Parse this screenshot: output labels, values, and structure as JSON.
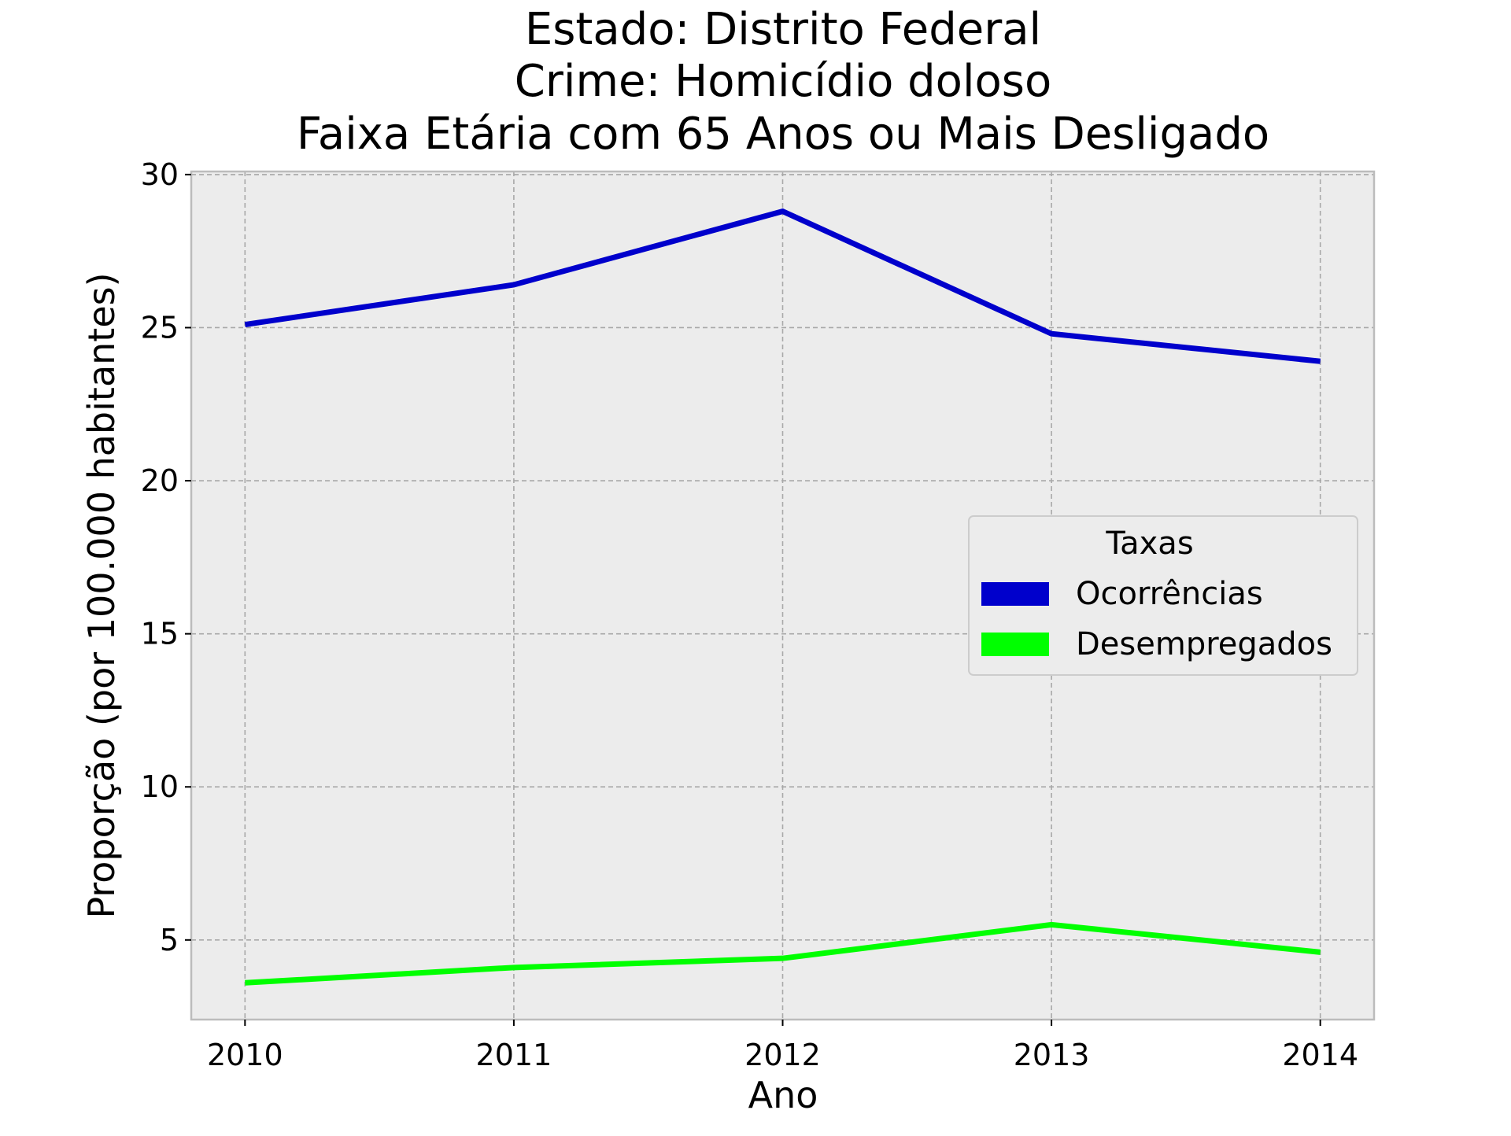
{
  "chart_data": {
    "type": "line",
    "title_lines": [
      "Estado: Distrito Federal",
      "Crime: Homicídio doloso",
      "Faixa Etária com 65 Anos ou Mais   Desligado"
    ],
    "xlabel": "Ano",
    "ylabel": "Proporção (por 100.000 habitantes)",
    "x": [
      2010,
      2011,
      2012,
      2013,
      2014
    ],
    "x_tick_labels": [
      "2010",
      "2011",
      "2012",
      "2013",
      "2014"
    ],
    "y_ticks": [
      5,
      10,
      15,
      20,
      25,
      30
    ],
    "y_tick_labels": [
      "5",
      "10",
      "15",
      "20",
      "25",
      "30"
    ],
    "xlim": [
      2009.8,
      2014.2
    ],
    "ylim": [
      2.4,
      30.1
    ],
    "grid": true,
    "legend": {
      "title": "Taxas",
      "placement": "center-right"
    },
    "series": [
      {
        "name": "Ocorrências",
        "color": "#0000cc",
        "values": [
          25.1,
          26.4,
          28.8,
          24.8,
          23.9
        ]
      },
      {
        "name": "Desempregados",
        "color": "#00ff00",
        "values": [
          3.6,
          4.1,
          4.4,
          5.5,
          4.6
        ]
      }
    ],
    "colors": {
      "plot_background": "#ececec",
      "grid": "#a8a8a8",
      "spine": "#bcbcbc"
    }
  }
}
